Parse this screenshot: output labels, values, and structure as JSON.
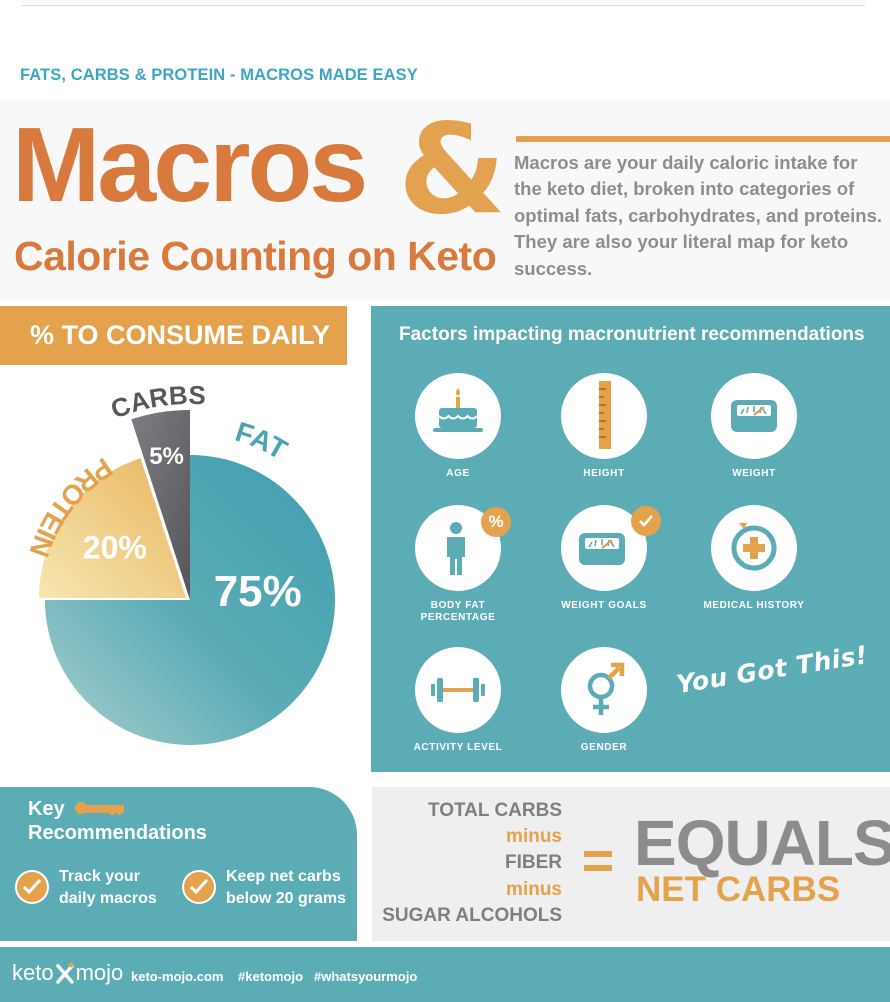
{
  "kicker": "FATS, CARBS & PROTEIN - MACROS MADE EASY",
  "hero": {
    "title": "Macros",
    "ampersand": "&",
    "subtitle": "Calorie Counting on Keto",
    "intro": "Macros are your daily caloric intake for the keto diet, broken into categories of optimal fats, carbohydrates, and proteins. They are also your literal map for keto success."
  },
  "consume_banner": "% TO CONSUME DAILY",
  "chart_data": {
    "type": "pie",
    "title": "% TO CONSUME DAILY",
    "slices": [
      {
        "label": "FAT",
        "value": 75,
        "value_label": "75%",
        "color": "#4ba5b4"
      },
      {
        "label": "PROTEIN",
        "value": 20,
        "value_label": "20%",
        "color": "#eebd66"
      },
      {
        "label": "CARBS",
        "value": 5,
        "value_label": "5%",
        "color": "#6c6c70"
      }
    ]
  },
  "factors": {
    "title": "Factors impacting macronutrient recommendations",
    "items": [
      {
        "label": "AGE",
        "icon": "birthday-cake-icon"
      },
      {
        "label": "HEIGHT",
        "icon": "ruler-icon"
      },
      {
        "label": "WEIGHT",
        "icon": "scale-icon"
      },
      {
        "label": "BODY FAT PERCENTAGE",
        "icon": "person-percent-icon",
        "badge": "%"
      },
      {
        "label": "WEIGHT GOALS",
        "icon": "scale-check-icon"
      },
      {
        "label": "MEDICAL HISTORY",
        "icon": "medical-cross-icon"
      },
      {
        "label": "ACTIVITY LEVEL",
        "icon": "dumbbell-icon"
      },
      {
        "label": "GENDER",
        "icon": "gender-icon"
      }
    ],
    "slogan": "You Got This!"
  },
  "key": {
    "title_line1": "Key",
    "title_line2": "Recommendations",
    "items": [
      {
        "text": "Track your daily macros"
      },
      {
        "text": "Keep net carbs below 20 grams"
      }
    ]
  },
  "net_carbs": {
    "total": "TOTAL CARBS",
    "minus": "minus",
    "fiber": "FIBER",
    "sugar_alcohols": "SUGAR ALCOHOLS",
    "equals": "EQUALS",
    "result": "NET CARBS"
  },
  "footer": {
    "logo_left": "keto",
    "logo_right": "mojo",
    "site": "keto-mojo.com",
    "tag1": "#ketomojo",
    "tag2": "#whatsyourmojo"
  },
  "colors": {
    "orange": "#d87a3e",
    "gold": "#e4a24c",
    "teal": "#5cacb6",
    "grey_text": "#8d8d8d"
  }
}
